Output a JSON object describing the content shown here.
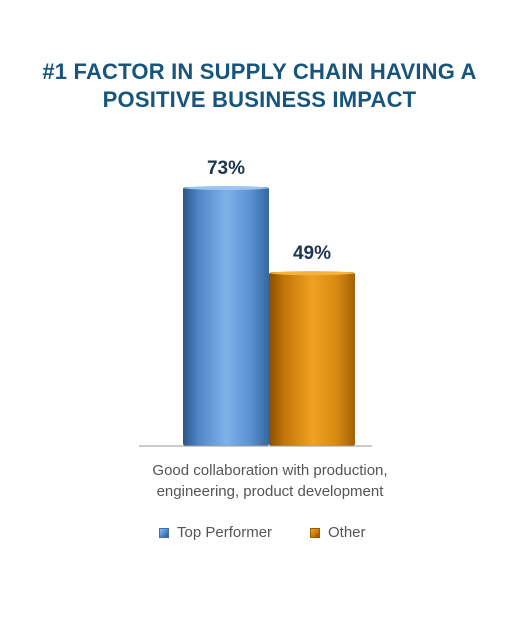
{
  "title": {
    "line1": "#1 FACTOR IN SUPPLY CHAIN HAVING A",
    "line2": "POSITIVE BUSINESS IMPACT"
  },
  "chart_data": {
    "type": "bar",
    "categories": [
      "Good collaboration with production, engineering, product development"
    ],
    "category_label_lines": [
      "Good collaboration with production,",
      "engineering, product development"
    ],
    "series": [
      {
        "name": "Top Performer",
        "values": [
          73
        ],
        "value_label": "73%",
        "color": "#5b93d6"
      },
      {
        "name": "Other",
        "values": [
          49
        ],
        "value_label": "49%",
        "color": "#d98a12"
      }
    ],
    "ylim": [
      0,
      73
    ],
    "unit": "%",
    "grid": false,
    "legend_placement": "bottom",
    "value_label_color": "#1c3550",
    "title_color": "#17557e"
  }
}
